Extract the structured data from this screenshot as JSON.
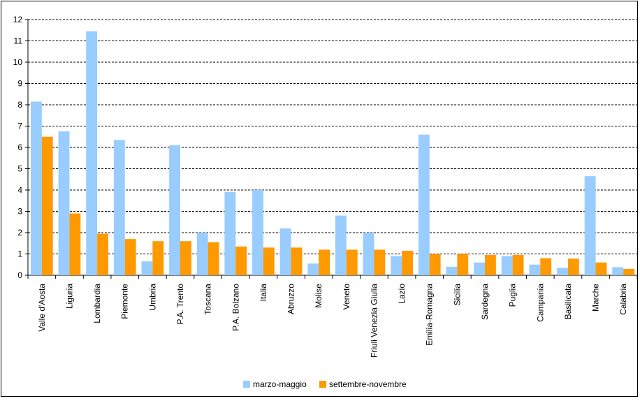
{
  "chart_data": {
    "type": "bar",
    "title": "",
    "xlabel": "",
    "ylabel": "",
    "ylim": [
      0,
      12
    ],
    "yticks": [
      0,
      1,
      2,
      3,
      4,
      5,
      6,
      7,
      8,
      9,
      10,
      11,
      12
    ],
    "grid": "horizontal dashed",
    "legend_position": "bottom",
    "categories": [
      "Valle d'Aosta",
      "Liguria",
      "Lombardia",
      "Piemonte",
      "Umbria",
      "P.A. Trento",
      "Toscana",
      "P.A. Bolzano",
      "Italia",
      "Abruzzo",
      "Molise",
      "Veneto",
      "Friuli Venezia Giulia",
      "Lazio",
      "Emilia-Romagna",
      "Sicilia",
      "Sardegna",
      "Puglia",
      "Campania",
      "Basilicata",
      "Marche",
      "Calabria"
    ],
    "series": [
      {
        "name": "marzo-maggio",
        "color": "#99CCFF",
        "values": [
          8.15,
          6.75,
          11.45,
          6.35,
          0.65,
          6.1,
          2.0,
          3.9,
          4.0,
          2.2,
          0.55,
          2.8,
          2.0,
          0.9,
          6.6,
          0.4,
          0.6,
          0.9,
          0.5,
          0.35,
          4.65,
          0.38
        ]
      },
      {
        "name": "settembre-novembre",
        "color": "#FF9900",
        "values": [
          6.5,
          2.9,
          1.95,
          1.7,
          1.6,
          1.6,
          1.55,
          1.35,
          1.3,
          1.3,
          1.2,
          1.2,
          1.2,
          1.15,
          1.0,
          1.0,
          0.95,
          0.95,
          0.8,
          0.78,
          0.6,
          0.3
        ]
      }
    ]
  }
}
